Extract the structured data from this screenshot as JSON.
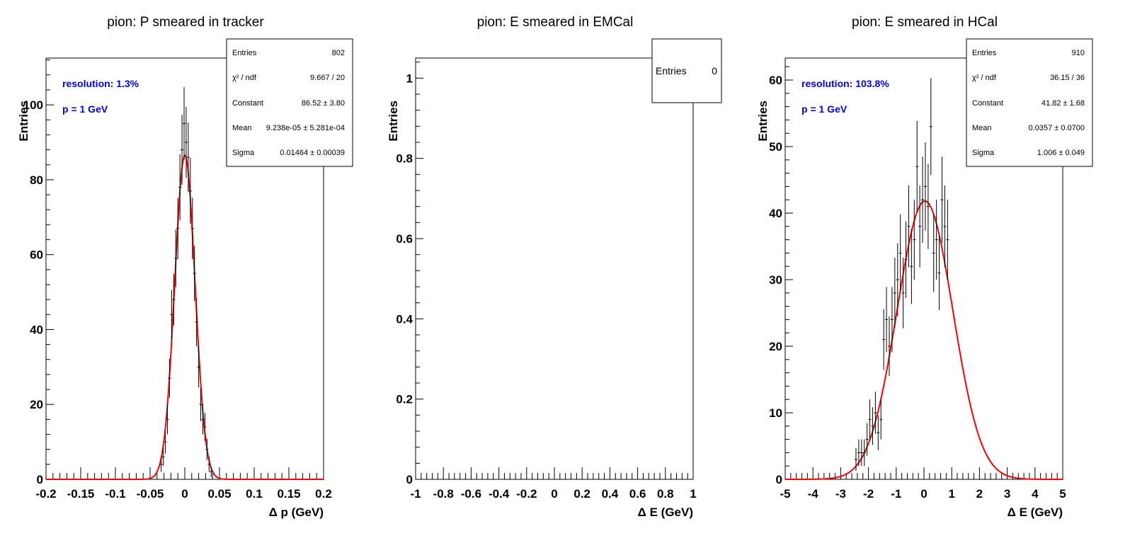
{
  "chart_data": [
    {
      "id": "p1",
      "type": "histogram",
      "title": "pion: P smeared in tracker",
      "xlabel": "Δ p (GeV)",
      "ylabel": "Entries",
      "xlim": [
        -0.2,
        0.2
      ],
      "ylim": [
        0,
        112.5
      ],
      "xticks": [
        -0.2,
        -0.15,
        -0.1,
        -0.05,
        0,
        0.05,
        0.1,
        0.15,
        0.2
      ],
      "xtick_labels": [
        "-0.2",
        "-0.15",
        "-0.1",
        "-0.05",
        "0",
        "0.05",
        "0.1",
        "0.15",
        "0.2"
      ],
      "yticks": [
        0,
        20,
        40,
        60,
        80,
        100
      ],
      "ytick_labels": [
        "0",
        "20",
        "40",
        "60",
        "80",
        "100"
      ],
      "annotations": [
        "resolution: 1.3%",
        "p = 1 GeV"
      ],
      "stats": [
        {
          "label": "Entries",
          "value": "802"
        },
        {
          "label": "χ² / ndf",
          "value": "9.667 / 20"
        },
        {
          "label": "Constant",
          "value": "86.52 ± 3.80"
        },
        {
          "label": "Mean",
          "value": "9.238e-05 ± 5.281e-04"
        },
        {
          "label": "Sigma",
          "value": "0.01464 ± 0.00039"
        }
      ],
      "fit": {
        "function": "gaus",
        "constant": 86.52,
        "mean": 9.238e-05,
        "sigma": 0.01464,
        "color": "#ff0000"
      },
      "points": [
        [
          -0.034,
          4
        ],
        [
          -0.031,
          6
        ],
        [
          -0.028,
          10
        ],
        [
          -0.025,
          16
        ],
        [
          -0.022,
          27
        ],
        [
          -0.019,
          44
        ],
        [
          -0.016,
          48
        ],
        [
          -0.013,
          59
        ],
        [
          -0.01,
          67
        ],
        [
          -0.007,
          78
        ],
        [
          -0.004,
          88
        ],
        [
          -0.001,
          95
        ],
        [
          0.002,
          90
        ],
        [
          0.005,
          86
        ],
        [
          0.008,
          77
        ],
        [
          0.011,
          67
        ],
        [
          0.014,
          55
        ],
        [
          0.017,
          42
        ],
        [
          0.02,
          30
        ],
        [
          0.023,
          20
        ],
        [
          0.026,
          16
        ],
        [
          0.029,
          14
        ],
        [
          0.032,
          8
        ],
        [
          0.035,
          4
        ],
        [
          0.038,
          2
        ]
      ]
    },
    {
      "id": "p2",
      "type": "histogram",
      "title": "pion: E smeared in EMCal",
      "xlabel": "Δ E (GeV)",
      "ylabel": "Entries",
      "xlim": [
        -1,
        1
      ],
      "ylim": [
        0,
        1.05
      ],
      "xticks": [
        -1,
        -0.8,
        -0.6,
        -0.4,
        -0.2,
        0,
        0.2,
        0.4,
        0.6,
        0.8,
        1
      ],
      "xtick_labels": [
        "-1",
        "-0.8",
        "-0.6",
        "-0.4",
        "-0.2",
        "0",
        "0.2",
        "0.4",
        "0.6",
        "0.8",
        "1"
      ],
      "yticks": [
        0,
        0.2,
        0.4,
        0.6,
        0.8,
        1
      ],
      "ytick_labels": [
        "0",
        "0.2",
        "0.4",
        "0.6",
        "0.8",
        "1"
      ],
      "annotations": [],
      "stats": [
        {
          "label": "Entries",
          "value": "0"
        }
      ],
      "points": []
    },
    {
      "id": "p3",
      "type": "histogram",
      "title": "pion: E smeared in HCal",
      "xlabel": "Δ E (GeV)",
      "ylabel": "Entries",
      "xlim": [
        -5,
        5
      ],
      "ylim": [
        0,
        63.3
      ],
      "xticks": [
        -5,
        -4,
        -3,
        -2,
        -1,
        0,
        1,
        2,
        3,
        4,
        5
      ],
      "xtick_labels": [
        "-5",
        "-4",
        "-3",
        "-2",
        "-1",
        "0",
        "1",
        "2",
        "3",
        "4",
        "5"
      ],
      "yticks": [
        0,
        10,
        20,
        30,
        40,
        50,
        60
      ],
      "ytick_labels": [
        "0",
        "10",
        "20",
        "30",
        "40",
        "50",
        "60"
      ],
      "annotations": [
        "resolution: 103.8%",
        "p = 1 GeV"
      ],
      "stats": [
        {
          "label": "Entries",
          "value": "910"
        },
        {
          "label": "χ² / ndf",
          "value": "36.15 / 36"
        },
        {
          "label": "Constant",
          "value": "41.82 ± 1.68"
        },
        {
          "label": "Mean",
          "value": "0.0357 ± 0.0700"
        },
        {
          "label": "Sigma",
          "value": "1.006 ± 0.049"
        }
      ],
      "fit": {
        "function": "gaus",
        "constant": 41.82,
        "mean": 0.0357,
        "sigma": 1.006,
        "color": "#ff0000"
      },
      "points": [
        [
          -2.45,
          3
        ],
        [
          -2.35,
          4
        ],
        [
          -2.25,
          4
        ],
        [
          -2.15,
          4
        ],
        [
          -2.05,
          6
        ],
        [
          -1.95,
          9
        ],
        [
          -1.85,
          8
        ],
        [
          -1.75,
          10
        ],
        [
          -1.65,
          7
        ],
        [
          -1.55,
          9
        ],
        [
          -1.45,
          21
        ],
        [
          -1.35,
          24
        ],
        [
          -1.25,
          20
        ],
        [
          -1.15,
          24
        ],
        [
          -1.05,
          28
        ],
        [
          -0.95,
          30
        ],
        [
          -0.85,
          34
        ],
        [
          -0.75,
          28
        ],
        [
          -0.65,
          33
        ],
        [
          -0.55,
          38
        ],
        [
          -0.45,
          32
        ],
        [
          -0.35,
          36
        ],
        [
          -0.25,
          47
        ],
        [
          -0.15,
          38
        ],
        [
          -0.05,
          42
        ],
        [
          0.05,
          44
        ],
        [
          0.15,
          41
        ],
        [
          0.25,
          53
        ],
        [
          0.35,
          34
        ],
        [
          0.45,
          36
        ],
        [
          0.55,
          31
        ],
        [
          0.65,
          42
        ],
        [
          0.75,
          38
        ],
        [
          0.85,
          36
        ]
      ]
    }
  ]
}
